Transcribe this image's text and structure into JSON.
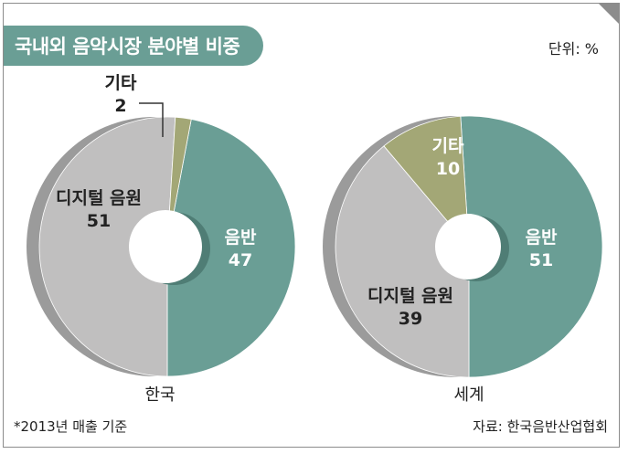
{
  "title": "국내외 음악시장 분야별 비중",
  "unit_label": "단위: %",
  "footnote": "*2013년 매출 기준",
  "source": "자료: 한국음반산업협회",
  "colors": {
    "accent": "#6a9e95",
    "record": "#6a9e95",
    "digital": "#c0bfbf",
    "other": "#a3a776"
  },
  "chart_data": [
    {
      "type": "pie",
      "donut": true,
      "label": "한국",
      "slices": [
        {
          "name": "음반",
          "value": 47,
          "color": "#6a9e95"
        },
        {
          "name": "디지털 음원",
          "value": 51,
          "color": "#c0bfbf"
        },
        {
          "name": "기타",
          "value": 2,
          "color": "#a3a776"
        }
      ]
    },
    {
      "type": "pie",
      "donut": true,
      "label": "세계",
      "slices": [
        {
          "name": "음반",
          "value": 51,
          "color": "#6a9e95"
        },
        {
          "name": "디지털 음원",
          "value": 39,
          "color": "#c0bfbf"
        },
        {
          "name": "기타",
          "value": 10,
          "color": "#a3a776"
        }
      ]
    }
  ]
}
